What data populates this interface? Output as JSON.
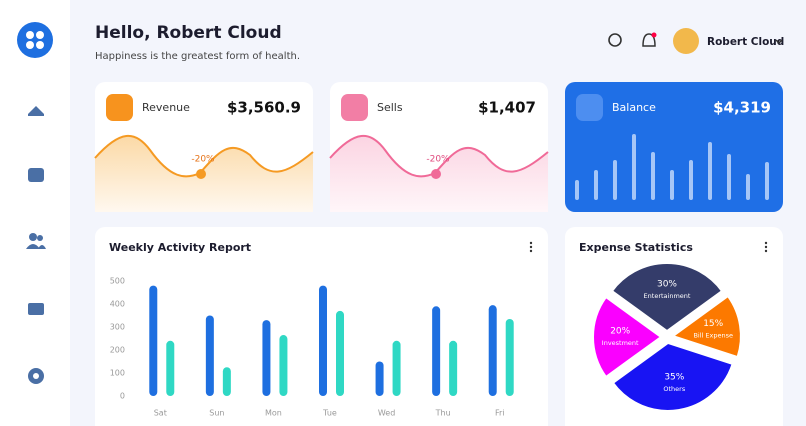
{
  "header": {
    "title": "Hello, Robert Cloud",
    "subtitle": "Happiness is the greatest form of health.",
    "user": "Robert Cloud"
  },
  "cards": [
    {
      "label": "Revenue",
      "value": "$3,560.9",
      "change": "-20%"
    },
    {
      "label": "Sells",
      "value": "$1,407",
      "change": "-20%"
    },
    {
      "label": "Balance",
      "value": "$4,319"
    }
  ],
  "chart_data": [
    {
      "type": "bar",
      "title": "Weekly Activity Report",
      "categories": [
        "Sat",
        "Sun",
        "Mon",
        "Tue",
        "Wed",
        "Thu",
        "Fri"
      ],
      "series": [
        {
          "color": "#1e6fe0",
          "values": [
            480,
            350,
            330,
            480,
            150,
            390,
            395
          ]
        },
        {
          "color": "#2fd8c4",
          "values": [
            240,
            125,
            265,
            370,
            240,
            240,
            335
          ]
        }
      ],
      "ylim": [
        0,
        500
      ],
      "yticks": [
        0,
        100,
        200,
        300,
        400,
        500
      ]
    },
    {
      "type": "pie",
      "title": "Expense Statistics",
      "categories": [
        "Entertainment",
        "Bill Expense",
        "Others",
        "Investment"
      ],
      "values": [
        30,
        15,
        35,
        20
      ],
      "value_labels": [
        "30%",
        "15%",
        "35%",
        "20%"
      ],
      "colors": [
        "#343c6a",
        "#fc7900",
        "#1814f3",
        "#fa00ff"
      ]
    },
    {
      "type": "bar",
      "values": [
        20,
        30,
        40,
        66,
        48,
        30,
        40,
        58,
        46,
        26,
        38
      ],
      "color": "#a6c6f7"
    }
  ]
}
